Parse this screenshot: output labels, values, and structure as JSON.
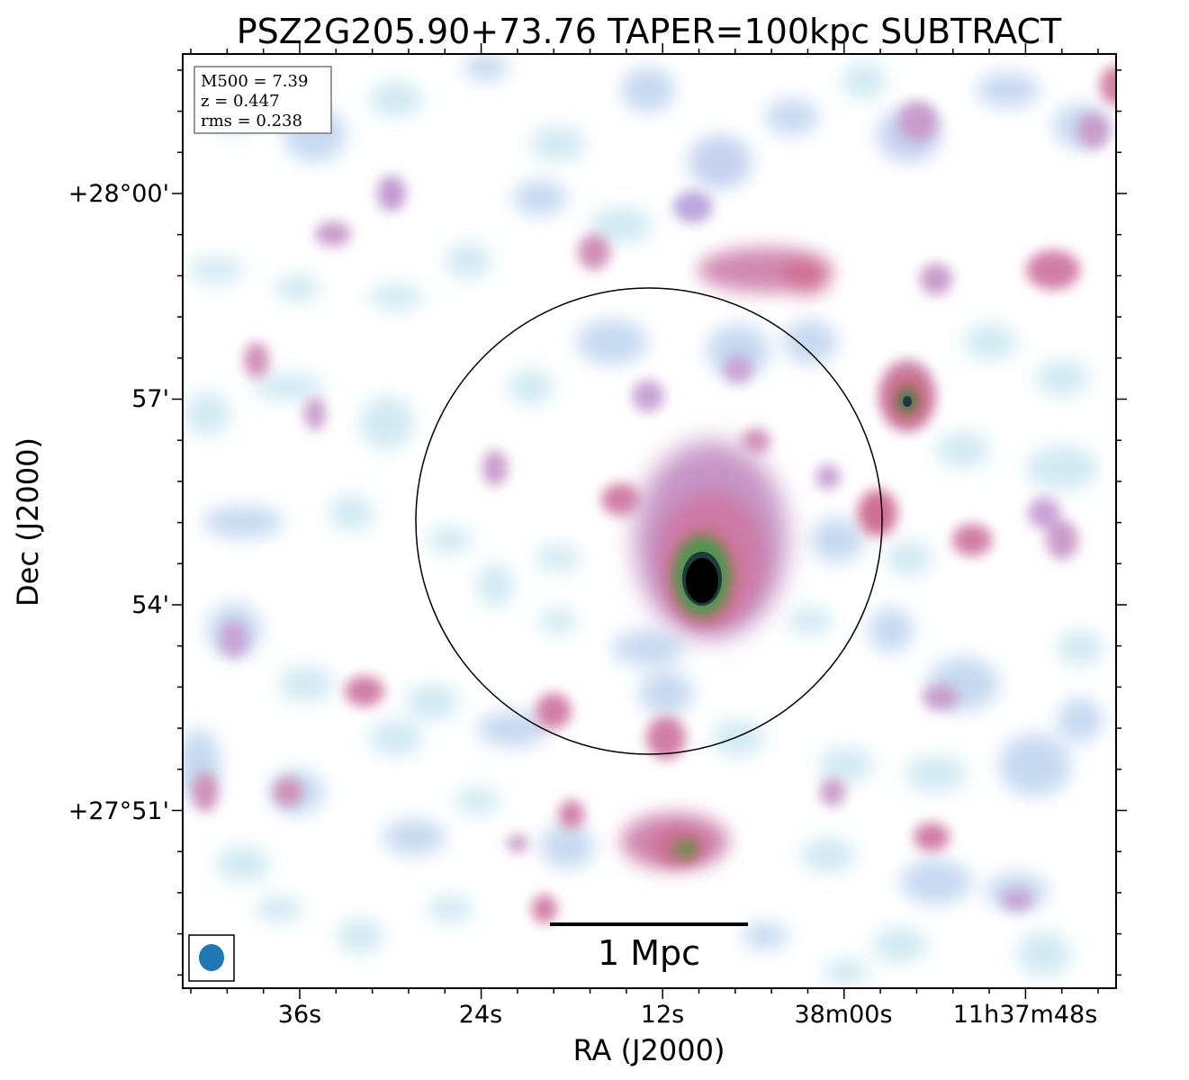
{
  "title": "PSZ2G205.90+73.76 TAPER=100kpc SUBTRACT",
  "axes": {
    "xlabel": "RA (J2000)",
    "ylabel": "Dec (J2000)",
    "x_ticks": [
      "36s",
      "24s",
      "12s",
      "38m00s",
      "11h37m48s"
    ],
    "y_ticks": [
      "+28°00'",
      "57'",
      "54'",
      "+27°51'"
    ]
  },
  "info_box": {
    "m500": "M500 = 7.39",
    "z": "z = 0.447",
    "rms": "rms = 0.238"
  },
  "scale_bar": {
    "label": "1 Mpc"
  },
  "colors": {
    "faint": "#bfe0ec",
    "low": "#b7b8e8",
    "mid": "#cc7fb0",
    "high": "#3f8a4a",
    "peak": "#000000",
    "beam": "#1f77b4"
  }
}
